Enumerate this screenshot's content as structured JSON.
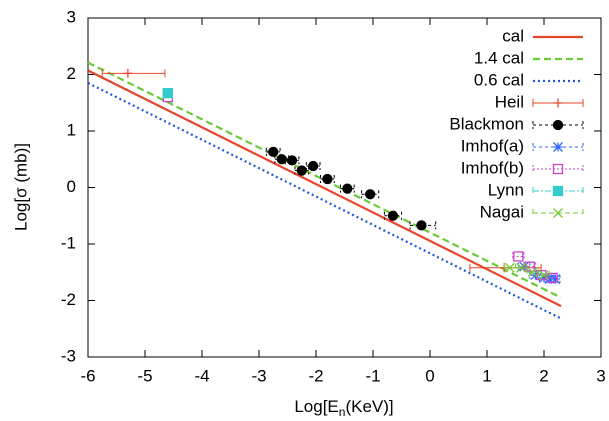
{
  "chart_data": {
    "type": "line",
    "x_label": [
      "Log[E",
      "n",
      "(KeV)]"
    ],
    "y_label": "Log[σ (mb)]",
    "xlim": [
      -6,
      3
    ],
    "ylim": [
      -3,
      3
    ],
    "xticks": [
      -6,
      -5,
      -4,
      -3,
      -2,
      -1,
      0,
      1,
      2,
      3
    ],
    "yticks": [
      -3,
      -2,
      -1,
      0,
      1,
      2,
      3
    ],
    "grid": false,
    "legend": "top-right",
    "series": [
      {
        "name": "cal",
        "color": "#e8462a",
        "style": "line",
        "dash": "none",
        "x": [
          -6,
          2.3
        ],
        "values": [
          2.07,
          -2.1
        ]
      },
      {
        "name": "1.4 cal",
        "color": "#66cc33",
        "style": "line",
        "dash": "7,4",
        "x": [
          -6,
          2.3
        ],
        "values": [
          2.21,
          -1.95
        ]
      },
      {
        "name": "0.6 cal",
        "color": "#2255dd",
        "style": "line",
        "dash": "2,3",
        "x": [
          -6,
          2.3
        ],
        "values": [
          1.85,
          -2.32
        ]
      },
      {
        "name": "Heil",
        "color": "#e8462a",
        "style": "points",
        "marker": "plus",
        "dash": "none",
        "x": [
          -5.3,
          1.3
        ],
        "values": [
          2.02,
          -1.42
        ],
        "x_low": [
          -5.75,
          0.7
        ],
        "x_high": [
          -4.65,
          1.95
        ]
      },
      {
        "name": "Blackmon",
        "color": "#000000",
        "style": "points",
        "marker": "circle",
        "dash": "3,3",
        "x": [
          -2.75,
          -2.6,
          -2.42,
          -2.25,
          -2.05,
          -1.8,
          -1.45,
          -1.05,
          -0.65,
          -0.15
        ],
        "values": [
          0.63,
          0.5,
          0.48,
          0.3,
          0.38,
          0.15,
          -0.02,
          -0.12,
          -0.5,
          -0.67
        ],
        "x_low": [
          -2.87,
          -2.72,
          -2.54,
          -2.37,
          -2.17,
          -1.92,
          -1.57,
          -1.2,
          -0.8,
          -0.35
        ],
        "x_high": [
          -2.63,
          -2.48,
          -2.3,
          -2.13,
          -1.93,
          -1.68,
          -1.33,
          -0.9,
          -0.5,
          0.1
        ]
      },
      {
        "name": "Imhof(a)",
        "color": "#3366ff",
        "style": "points",
        "marker": "star",
        "dash": "3,3",
        "x": [
          1.65,
          1.85,
          2.0,
          2.1,
          2.2
        ],
        "values": [
          -1.4,
          -1.55,
          -1.6,
          -1.62,
          -1.62
        ],
        "x_low": [
          1.55,
          1.75,
          1.92,
          2.02,
          2.12
        ],
        "x_high": [
          1.75,
          1.95,
          2.08,
          2.18,
          2.28
        ]
      },
      {
        "name": "Imhof(b)",
        "color": "#cc44cc",
        "style": "points",
        "marker": "square",
        "dash": "2,2",
        "x": [
          -4.6,
          1.55,
          1.75,
          1.95,
          2.15
        ],
        "values": [
          1.6,
          -1.22,
          -1.4,
          -1.55,
          -1.6
        ],
        "x_low": [
          -4.6,
          1.45,
          1.65,
          1.87,
          2.07
        ],
        "x_high": [
          -4.6,
          1.65,
          1.85,
          2.03,
          2.23
        ]
      },
      {
        "name": "Lynn",
        "color": "#33cccc",
        "style": "points",
        "marker": "fsquare",
        "dash": "6,2,2,2",
        "x": [
          -4.6
        ],
        "values": [
          1.67
        ],
        "x_low": [
          -4.6
        ],
        "x_high": [
          -4.6
        ]
      },
      {
        "name": "Nagai",
        "color": "#77cc33",
        "style": "points",
        "marker": "cross",
        "dash": "5,3",
        "x": [
          1.4,
          1.6,
          1.8,
          2.0
        ],
        "values": [
          -1.42,
          -1.42,
          -1.5,
          -1.55
        ],
        "x_low": [
          1.3,
          1.5,
          1.7,
          1.9
        ],
        "x_high": [
          1.5,
          1.7,
          1.9,
          2.1
        ]
      }
    ]
  }
}
